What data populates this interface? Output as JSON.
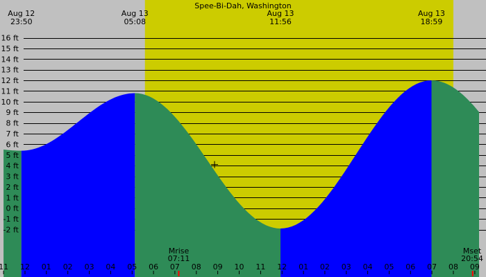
{
  "chart_data": {
    "type": "area",
    "title": "Spee-Bi-Dah, Washington",
    "xlabel": "",
    "ylabel": "",
    "units": "ft",
    "ylim": [
      -3,
      16.5
    ],
    "xlim": [
      11,
      33.2
    ],
    "y_ticks": [
      "16 ft",
      "15 ft",
      "14 ft",
      "13 ft",
      "12 ft",
      "11 ft",
      "10 ft",
      "9 ft",
      "8 ft",
      "7 ft",
      "6 ft",
      "5 ft",
      "4 ft",
      "3 ft",
      "2 ft",
      "1 ft",
      "0 ft",
      "-1 ft",
      "-2 ft"
    ],
    "y_tick_values": [
      16,
      15,
      14,
      13,
      12,
      11,
      10,
      9,
      8,
      7,
      6,
      5,
      4,
      3,
      2,
      1,
      0,
      -1,
      -2
    ],
    "x_tick_labels": [
      "11",
      "12",
      "01",
      "02",
      "03",
      "04",
      "05",
      "06",
      "07",
      "08",
      "09",
      "10",
      "11",
      "12",
      "01",
      "02",
      "03",
      "04",
      "05",
      "06",
      "07",
      "08",
      "09"
    ],
    "x_tick_hours": [
      11,
      12,
      13,
      14,
      15,
      16,
      17,
      18,
      19,
      20,
      21,
      22,
      23,
      24,
      25,
      26,
      27,
      28,
      29,
      30,
      31,
      32,
      33
    ],
    "daylight": {
      "start_hour": 17.6,
      "end_hour": 32.0
    },
    "extremes": [
      {
        "date": "Aug 12",
        "time": "23:50",
        "hour": 11.83,
        "height": 5.4,
        "kind": "low"
      },
      {
        "date": "Aug 13",
        "time": "05:08",
        "hour": 17.13,
        "height": 10.8,
        "kind": "high"
      },
      {
        "date": "Aug 13",
        "time": "11:56",
        "hour": 23.93,
        "height": -1.9,
        "kind": "low"
      },
      {
        "date": "Aug 13",
        "time": "18:59",
        "hour": 30.98,
        "height": 12.0,
        "kind": "high"
      }
    ],
    "start_height": 5.7,
    "end_height": 9.0,
    "moon": [
      {
        "label": "Mrise",
        "time": "07:11",
        "hour": 19.18
      },
      {
        "label": "Mset",
        "time": "20:54",
        "hour": 32.9
      }
    ],
    "current_marker": {
      "hour": 20.85,
      "height": 4.1
    },
    "colors": {
      "background": "#c0c0c0",
      "daylight": "#cccc00",
      "rising": "#0000ff",
      "falling": "#2e8b57",
      "grid": "#000000",
      "moon_tick": "#ff0000"
    }
  }
}
